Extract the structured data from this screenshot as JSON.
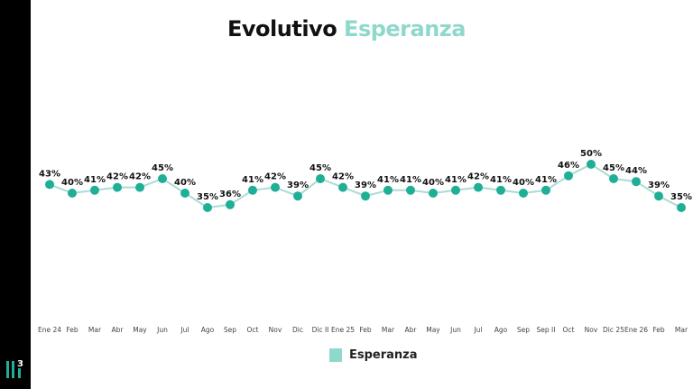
{
  "title_part1": "Evolutivo",
  "title_part2": "Esperanza",
  "chart_data": {
    "type": "line",
    "categories": [
      "Ene 24",
      "Feb",
      "Mar",
      "Abr",
      "May",
      "Jun",
      "Jul",
      "Ago",
      "Sep",
      "Oct",
      "Nov",
      "Dic",
      "Dic II",
      "Ene 25",
      "Feb",
      "Mar",
      "Abr",
      "May",
      "Jun",
      "Jul",
      "Ago",
      "Sep",
      "Sep II",
      "Oct",
      "Nov",
      "Dic 25",
      "Ene 26",
      "Feb",
      "Mar"
    ],
    "series": [
      {
        "name": "Esperanza",
        "values": [
          43,
          40,
          41,
          42,
          42,
          45,
          40,
          35,
          36,
          41,
          42,
          39,
          45,
          42,
          39,
          41,
          41,
          40,
          41,
          42,
          41,
          40,
          41,
          46,
          50,
          45,
          44,
          39,
          35
        ],
        "color": "#1fae96",
        "line_color": "#a8ddd4"
      }
    ],
    "value_suffix": "%",
    "legend": "bottom",
    "legend_color": "#8fd8cc",
    "grid": false
  },
  "logo_text": "3"
}
